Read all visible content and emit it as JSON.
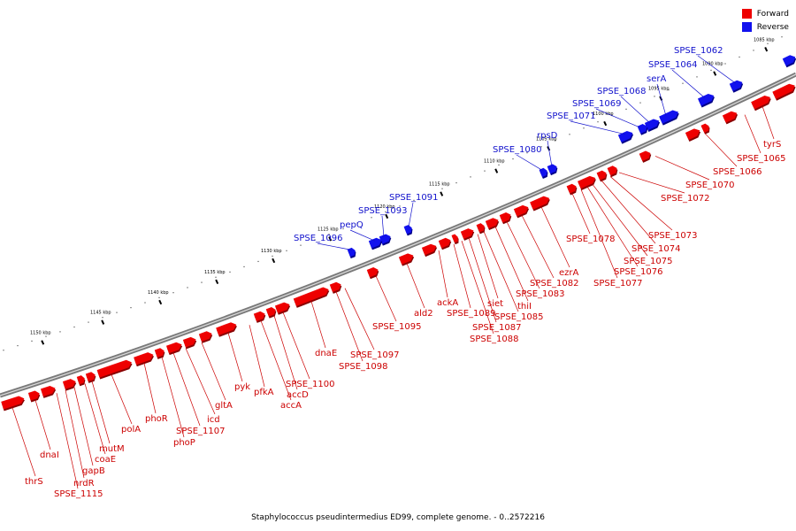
{
  "caption": "Staphylococcus pseudintermedius ED99, complete genome. - 0..2572216",
  "legend": [
    {
      "label": "Forward",
      "color": "#ee0000"
    },
    {
      "label": "Reverse",
      "color": "#1111ee"
    }
  ],
  "tick_labels": [
    "1085 kbp",
    "1090 kbp",
    "1095 kbp",
    "1100 kbp",
    "1105 kbp",
    "1110 kbp",
    "1115 kbp",
    "1120 kbp",
    "1125 kbp",
    "1130 kbp",
    "1135 kbp",
    "1140 kbp",
    "1145 kbp",
    "1150 kbp"
  ],
  "forward_labels": [
    "tyrS",
    "SPSE_1065",
    "SPSE_1066",
    "SPSE_1070",
    "SPSE_1072",
    "SPSE_1073",
    "SPSE_1074",
    "SPSE_1075",
    "SPSE_1076",
    "SPSE_1077",
    "SPSE_1078",
    "ezrA",
    "SPSE_1082",
    "SPSE_1083",
    "thiI",
    "SPSE_1085",
    "siet",
    "SPSE_1087",
    "SPSE_1088",
    "SPSE_1089",
    "ackA",
    "ald2",
    "SPSE_1095",
    "SPSE_1097",
    "SPSE_1098",
    "dnaE",
    "SPSE_1100",
    "accD",
    "accA",
    "pfkA",
    "pyk",
    "gltA",
    "icd",
    "SPSE_1107",
    "phoP",
    "phoR",
    "polA",
    "mutM",
    "coaE",
    "gapB",
    "nrdR",
    "SPSE_1115",
    "dnaI",
    "thrS"
  ],
  "reverse_labels": [
    "SPSE_1062",
    "SPSE_1064",
    "serA",
    "SPSE_1068",
    "SPSE_1069",
    "SPSE_1071",
    "rpsD",
    "SPSE_1080",
    "SPSE_1091",
    "SPSE_1093",
    "pepQ",
    "SPSE_1096"
  ]
}
